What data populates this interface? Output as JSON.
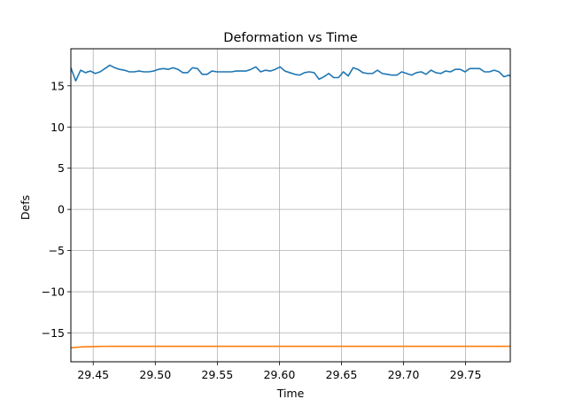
{
  "chart_data": {
    "type": "line",
    "title": "Deformation vs Time",
    "xlabel": "Time",
    "ylabel": "Defs",
    "xlim": [
      29.432,
      29.786
    ],
    "ylim": [
      -18.5,
      19.5
    ],
    "grid": true,
    "x_ticks": [
      {
        "value": 29.45,
        "label": "29.45"
      },
      {
        "value": 29.5,
        "label": "29.50"
      },
      {
        "value": 29.55,
        "label": "29.55"
      },
      {
        "value": 29.6,
        "label": "29.60"
      },
      {
        "value": 29.65,
        "label": "29.65"
      },
      {
        "value": 29.7,
        "label": "29.70"
      },
      {
        "value": 29.75,
        "label": "29.75"
      }
    ],
    "y_ticks": [
      {
        "value": 15,
        "label": "15"
      },
      {
        "value": 10,
        "label": "10"
      },
      {
        "value": 5,
        "label": "5"
      },
      {
        "value": 0,
        "label": "0"
      },
      {
        "value": -5,
        "label": "−5"
      },
      {
        "value": -10,
        "label": "−10"
      },
      {
        "value": -15,
        "label": "−15"
      }
    ],
    "x_start": 29.432,
    "x_step": 0.00392,
    "series": [
      {
        "color": "#1f77b4",
        "values": [
          17.2,
          15.6,
          16.9,
          16.6,
          16.8,
          16.5,
          16.7,
          17.1,
          17.5,
          17.2,
          17.0,
          16.9,
          16.7,
          16.7,
          16.8,
          16.7,
          16.7,
          16.8,
          17.0,
          17.1,
          17.0,
          17.2,
          17.0,
          16.6,
          16.6,
          17.2,
          17.1,
          16.4,
          16.4,
          16.8,
          16.7,
          16.7,
          16.7,
          16.7,
          16.8,
          16.8,
          16.8,
          17.0,
          17.3,
          16.7,
          16.9,
          16.8,
          17.0,
          17.3,
          16.8,
          16.6,
          16.4,
          16.3,
          16.6,
          16.7,
          16.6,
          15.8,
          16.1,
          16.5,
          16.0,
          16.0,
          16.7,
          16.2,
          17.2,
          17.0,
          16.6,
          16.5,
          16.5,
          16.9,
          16.5,
          16.4,
          16.3,
          16.3,
          16.7,
          16.5,
          16.3,
          16.6,
          16.7,
          16.4,
          16.9,
          16.6,
          16.5,
          16.8,
          16.7,
          17.0,
          17.0,
          16.7,
          17.1,
          17.1,
          17.1,
          16.7,
          16.7,
          16.9,
          16.7,
          16.1,
          16.3,
          15.9,
          16.5,
          16.8,
          17.0,
          16.9,
          17.0,
          17.3,
          17.3
        ]
      },
      {
        "color": "#ff7f0e",
        "values": [
          -16.8,
          -16.75,
          -16.7,
          -16.68,
          -16.66,
          -16.65,
          -16.64,
          -16.63,
          -16.62,
          -16.62,
          -16.62,
          -16.62,
          -16.62,
          -16.62,
          -16.62,
          -16.62,
          -16.62,
          -16.62,
          -16.62,
          -16.62,
          -16.62,
          -16.62,
          -16.62,
          -16.62,
          -16.62,
          -16.62,
          -16.62,
          -16.62,
          -16.62,
          -16.62,
          -16.62,
          -16.62,
          -16.62,
          -16.62,
          -16.62,
          -16.62,
          -16.62,
          -16.62,
          -16.62,
          -16.62,
          -16.62,
          -16.62,
          -16.62,
          -16.62,
          -16.62,
          -16.62,
          -16.62,
          -16.62,
          -16.62,
          -16.62,
          -16.62,
          -16.62,
          -16.62,
          -16.62,
          -16.62,
          -16.62,
          -16.62,
          -16.62,
          -16.62,
          -16.62,
          -16.62,
          -16.62,
          -16.62,
          -16.62,
          -16.62,
          -16.62,
          -16.62,
          -16.62,
          -16.62,
          -16.62,
          -16.62,
          -16.62,
          -16.62,
          -16.62,
          -16.62,
          -16.62,
          -16.62,
          -16.62,
          -16.62,
          -16.62,
          -16.62,
          -16.62,
          -16.62,
          -16.62,
          -16.62,
          -16.62,
          -16.62,
          -16.62,
          -16.62,
          -16.62,
          -16.62,
          -16.62,
          -16.62,
          -16.62,
          -16.62,
          -16.62,
          -16.62,
          -16.62,
          -16.62,
          -16.62
        ]
      }
    ]
  }
}
